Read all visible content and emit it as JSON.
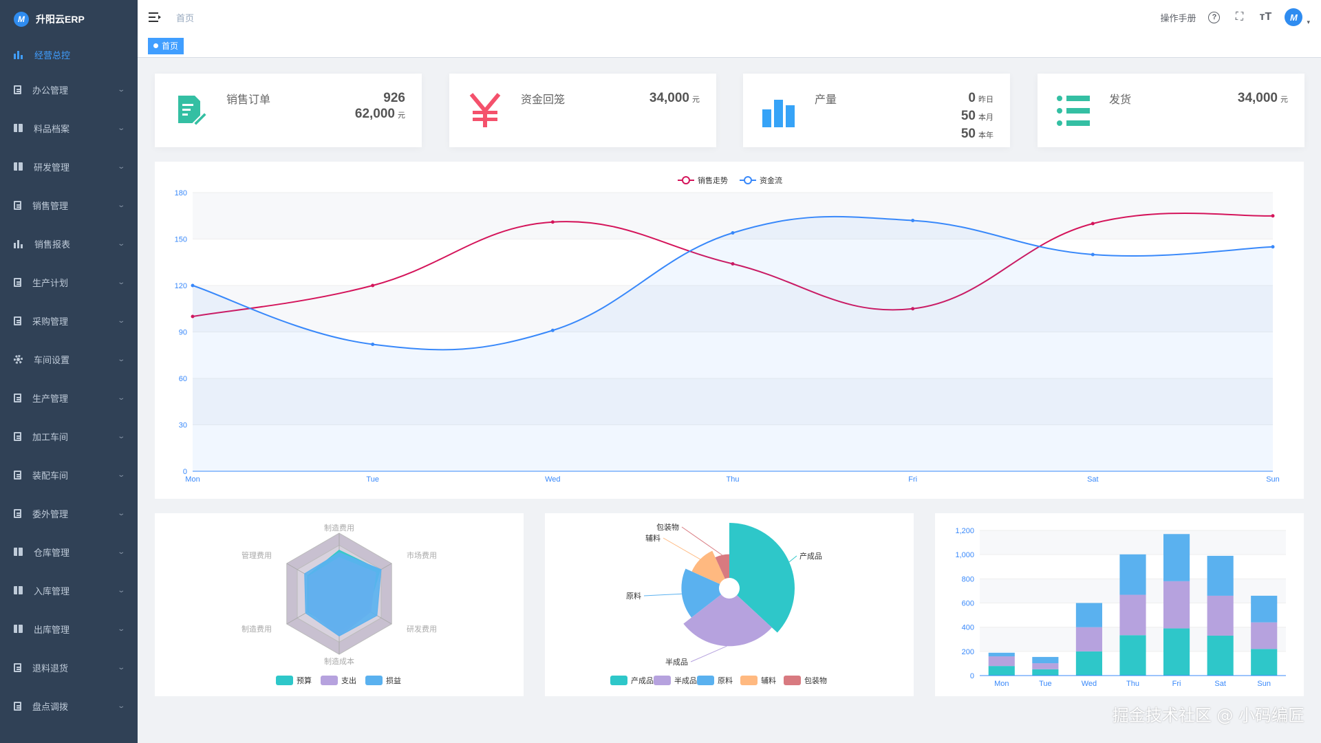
{
  "brand": {
    "name": "升阳云ERP",
    "logo_letter": "M"
  },
  "sidebar": {
    "items": [
      {
        "label": "经营总控",
        "icon": "bar-chart-icon",
        "active": true
      },
      {
        "label": "办公管理",
        "icon": "document-icon"
      },
      {
        "label": "料品档案",
        "icon": "book-icon"
      },
      {
        "label": "研发管理",
        "icon": "book-icon"
      },
      {
        "label": "销售管理",
        "icon": "document-icon"
      },
      {
        "label": "销售报表",
        "icon": "bar-chart-icon"
      },
      {
        "label": "生产计划",
        "icon": "document-icon"
      },
      {
        "label": "采购管理",
        "icon": "document-icon"
      },
      {
        "label": "车间设置",
        "icon": "gear-icon"
      },
      {
        "label": "生产管理",
        "icon": "document-icon"
      },
      {
        "label": "加工车间",
        "icon": "document-icon"
      },
      {
        "label": "装配车间",
        "icon": "document-icon"
      },
      {
        "label": "委外管理",
        "icon": "document-icon"
      },
      {
        "label": "仓库管理",
        "icon": "book-icon"
      },
      {
        "label": "入库管理",
        "icon": "book-icon"
      },
      {
        "label": "出库管理",
        "icon": "book-icon"
      },
      {
        "label": "退料退货",
        "icon": "document-icon"
      },
      {
        "label": "盘点调拨",
        "icon": "document-icon"
      }
    ]
  },
  "header": {
    "breadcrumb": "首页",
    "manual_label": "操作手册",
    "help_glyph": "?",
    "fullscreen_glyph": "⛶",
    "font_size_glyph": "ᴛT",
    "avatar_letter": "M",
    "caret": "▾"
  },
  "tags": {
    "home": "首页"
  },
  "stats": [
    {
      "title": "销售订单",
      "icon": "edit-document-icon",
      "color": "#34bfa3",
      "lines": [
        {
          "value": "926",
          "unit": ""
        },
        {
          "value": "62,000",
          "unit": "元"
        }
      ]
    },
    {
      "title": "资金回笼",
      "icon": "yen-icon",
      "color": "#f4516c",
      "lines": [
        {
          "value": "34,000",
          "unit": "元"
        }
      ]
    },
    {
      "title": "产量",
      "icon": "bar-chart-icon",
      "color": "#36a3f7",
      "lines": [
        {
          "value": "0",
          "unit": "昨日"
        },
        {
          "value": "50",
          "unit": "本月"
        },
        {
          "value": "50",
          "unit": "本年"
        }
      ]
    },
    {
      "title": "发货",
      "icon": "list-icon",
      "color": "#34bfa3",
      "lines": [
        {
          "value": "34,000",
          "unit": "元"
        }
      ]
    }
  ],
  "chart_data": [
    {
      "type": "line",
      "categories": [
        "Mon",
        "Tue",
        "Wed",
        "Thu",
        "Fri",
        "Sat",
        "Sun"
      ],
      "series": [
        {
          "name": "销售走势",
          "values": [
            100,
            120,
            161,
            134,
            105,
            160,
            165
          ],
          "color": "#d4145a"
        },
        {
          "name": "资金流",
          "values": [
            120,
            82,
            91,
            154,
            162,
            140,
            145
          ],
          "color": "#3888fa"
        }
      ],
      "ylim": [
        0,
        180
      ],
      "yticks": [
        "0",
        "30",
        "60",
        "90",
        "120",
        "150",
        "180"
      ],
      "legend": "top-center"
    },
    {
      "type": "radar",
      "indicators": [
        "制造费用",
        "市场费用",
        "研发费用",
        "制造成本",
        "制造费用",
        "管理费用"
      ],
      "series": [
        {
          "name": "预算",
          "color": "#2ec7c9"
        },
        {
          "name": "支出",
          "color": "#b6a2de"
        },
        {
          "name": "损益",
          "color": "#5ab1ef"
        }
      ]
    },
    {
      "type": "pie",
      "rose": true,
      "slices": [
        {
          "name": "产成品",
          "value": 320,
          "color": "#2ec7c9"
        },
        {
          "name": "半成品",
          "value": 240,
          "color": "#b6a2de"
        },
        {
          "name": "原料",
          "value": 149,
          "color": "#5ab1ef"
        },
        {
          "name": "辅料",
          "value": 100,
          "color": "#ffb980"
        },
        {
          "name": "包装物",
          "value": 59,
          "color": "#d87a80"
        }
      ]
    },
    {
      "type": "bar",
      "stacked": true,
      "categories": [
        "Mon",
        "Tue",
        "Wed",
        "Thu",
        "Fri",
        "Sat",
        "Sun"
      ],
      "series": [
        {
          "values": [
            79,
            52,
            200,
            334,
            390,
            330,
            220
          ],
          "color": "#2ec7c9"
        },
        {
          "values": [
            80,
            50,
            200,
            334,
            390,
            330,
            220
          ],
          "color": "#b6a2de"
        },
        {
          "values": [
            30,
            52,
            200,
            334,
            390,
            330,
            220
          ],
          "color": "#5ab1ef"
        }
      ],
      "ylim": [
        0,
        1200
      ],
      "yticks": [
        "0",
        "200",
        "400",
        "600",
        "800",
        "1,000",
        "1,200"
      ]
    }
  ],
  "watermark": "掘金技术社区 @ 小码编匠"
}
